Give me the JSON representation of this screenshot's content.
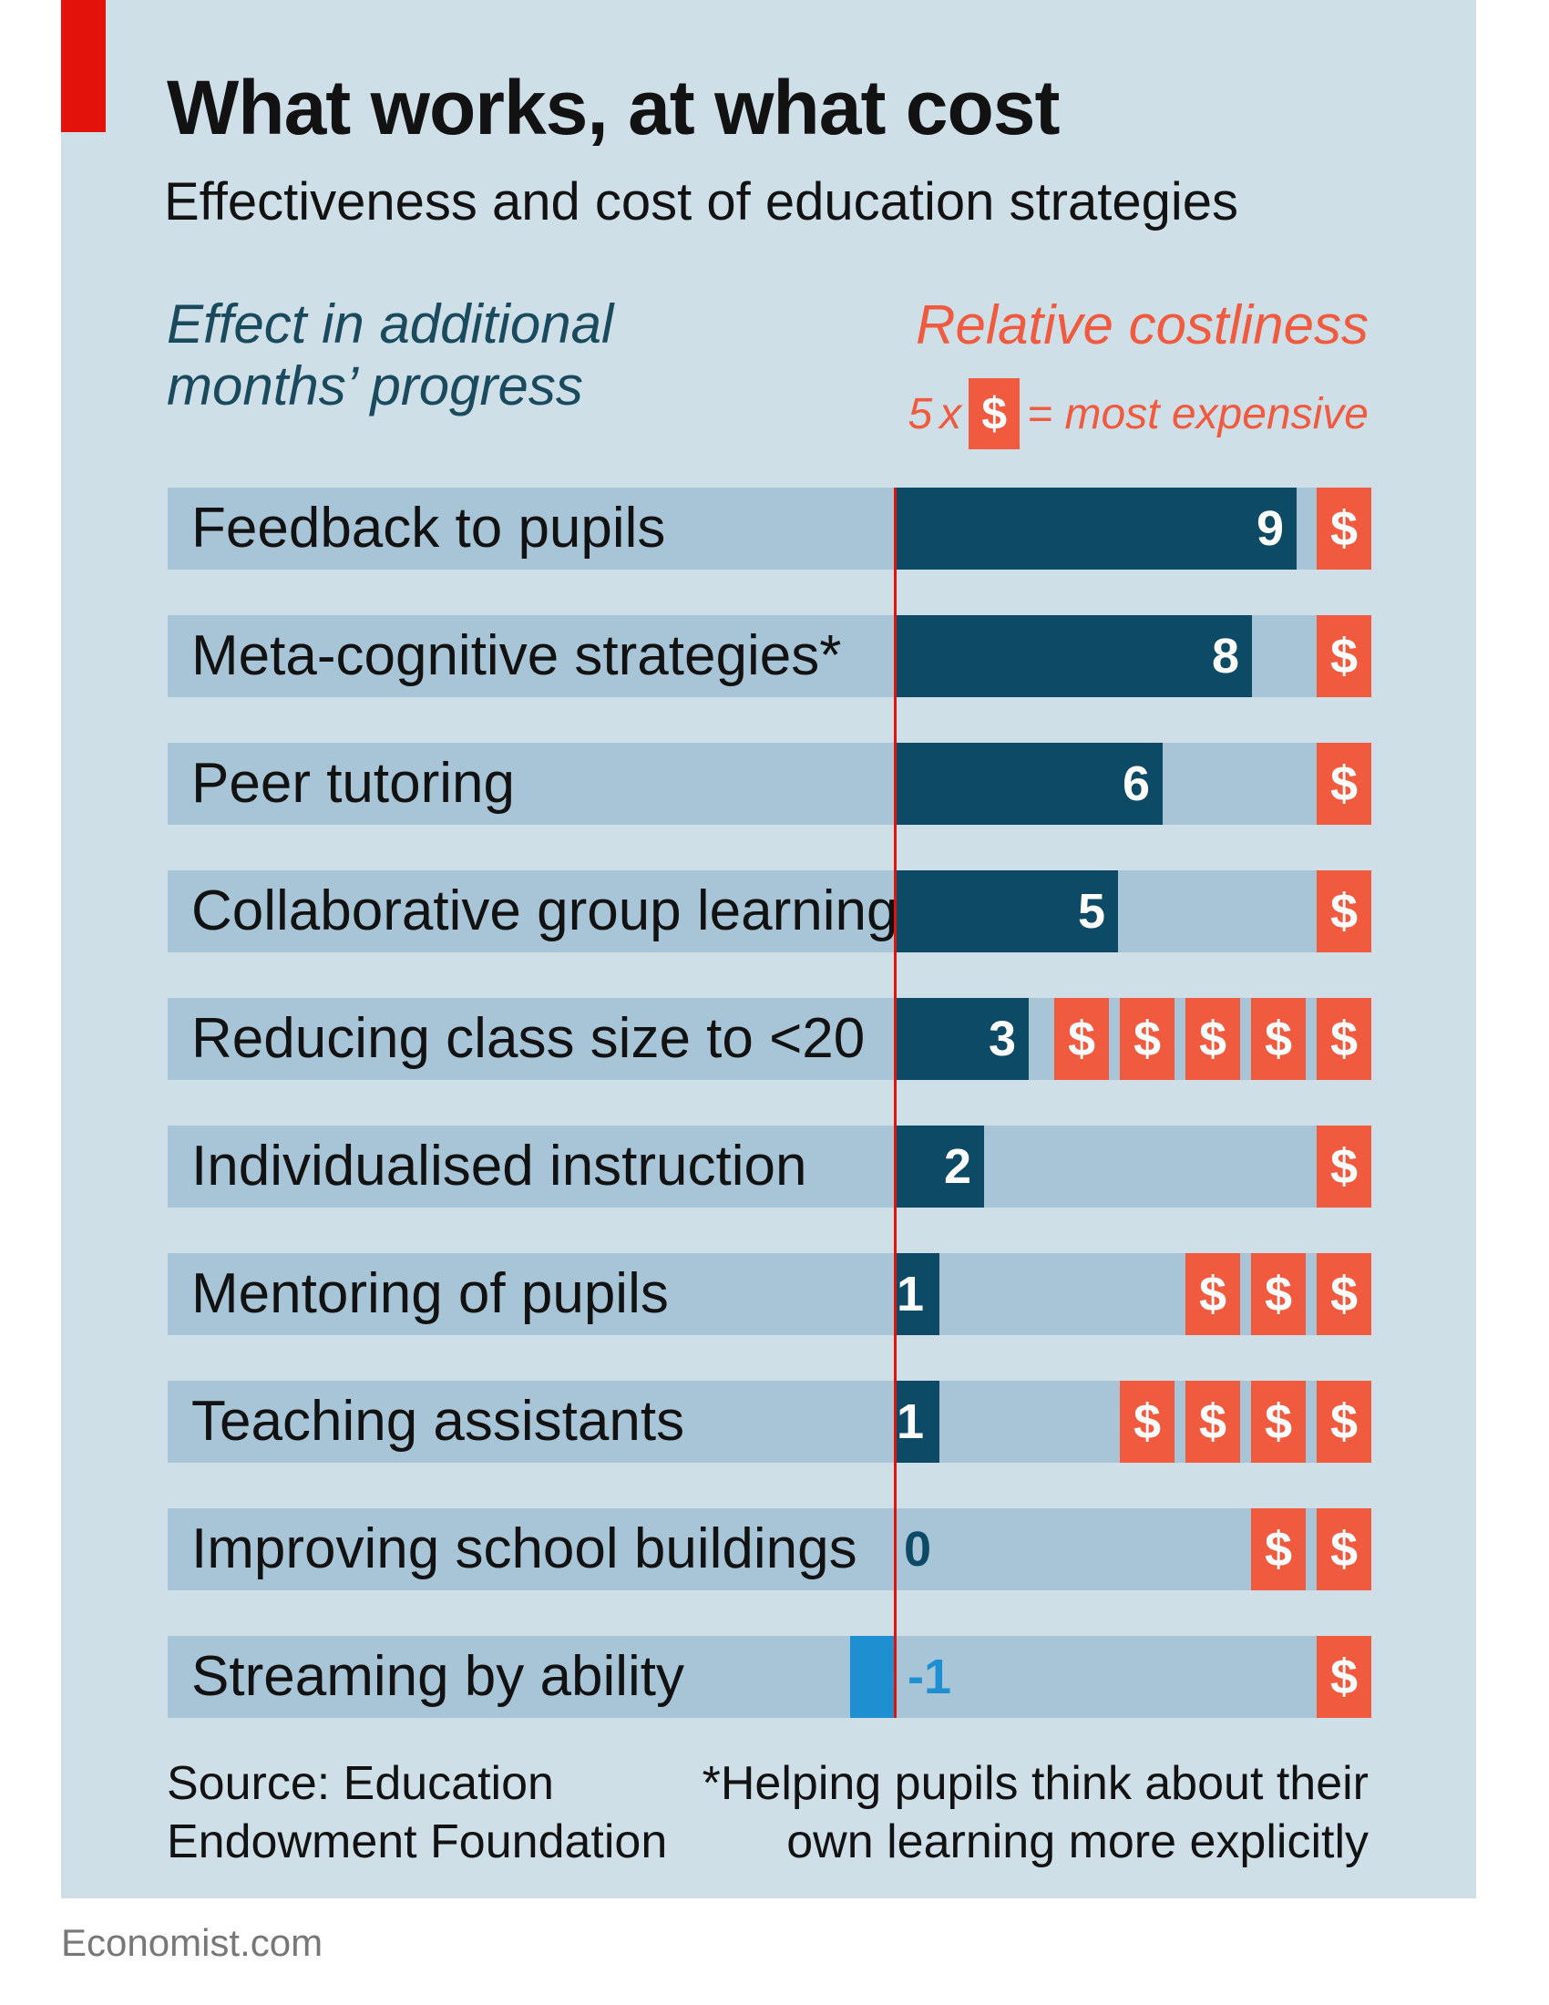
{
  "header": {
    "title": "What works, at what cost",
    "subtitle": "Effectiveness and cost of education strategies"
  },
  "colors": {
    "panel": "#cfdfe8",
    "row_background": "#a7c5d6",
    "positive_bar": "#0d4a66",
    "negative_bar": "#1e8fd0",
    "cost": "#f05a3f",
    "zero_line": "#e3120b",
    "accent_tag": "#e3120b"
  },
  "chart_data": {
    "type": "bar",
    "orientation": "horizontal",
    "effect_axis_label": [
      "Effect in additional",
      "months’ progress"
    ],
    "cost_axis_label": "Relative costliness",
    "cost_key": {
      "prefix": "5",
      "times": "x",
      "symbol": "$",
      "suffix": "= most expensive"
    },
    "categories": [
      "Feedback to pupils",
      "Meta-cognitive strategies*",
      "Peer tutoring",
      "Collaborative group learning",
      "Reducing class size to <20",
      "Individualised instruction",
      "Mentoring of pupils",
      "Teaching assistants",
      "Improving school buildings",
      "Streaming by ability"
    ],
    "series": [
      {
        "name": "Effect in additional months’ progress",
        "values": [
          9,
          8,
          6,
          5,
          3,
          2,
          1,
          1,
          0,
          -1
        ]
      },
      {
        "name": "Relative costliness",
        "values": [
          1,
          1,
          1,
          1,
          5,
          1,
          3,
          4,
          2,
          1
        ]
      }
    ],
    "value_labels": [
      "9",
      "8",
      "6",
      "5",
      "3",
      "2",
      "1",
      "1",
      "0",
      "-1"
    ],
    "cost_symbol": "$",
    "effect_range": [
      -1,
      9
    ],
    "cost_max": 5
  },
  "footer": {
    "source_lines": [
      "Source: Education",
      "Endowment Foundation"
    ],
    "footnote_lines": [
      "*Helping pupils think about their",
      "own learning more explicitly"
    ],
    "brand": "Economist.com"
  }
}
